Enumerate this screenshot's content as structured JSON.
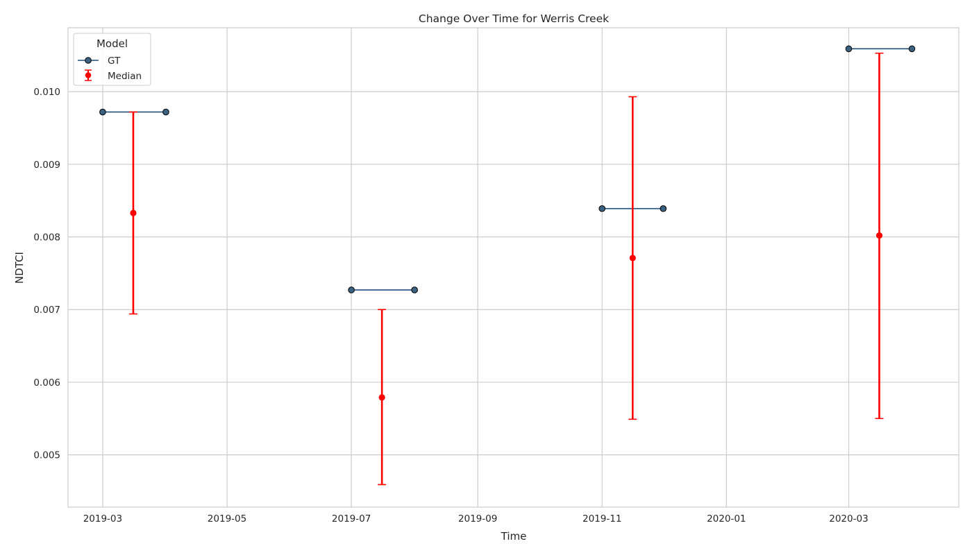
{
  "chart_data": {
    "type": "line",
    "title": "Change Over Time for Werris Creek",
    "xlabel": "Time",
    "ylabel": "NDTCI",
    "x_ticks": [
      "2019-03",
      "2019-05",
      "2019-07",
      "2019-09",
      "2019-11",
      "2020-01",
      "2020-03"
    ],
    "y_ticks": [
      "0.005",
      "0.006",
      "0.007",
      "0.008",
      "0.009",
      "0.010"
    ],
    "xlim": [
      "2019-02-12",
      "2020-04-24"
    ],
    "ylim": [
      0.00428,
      0.01088
    ],
    "grid": true,
    "legend": {
      "title": "Model",
      "placement": "top-left",
      "entries": [
        "GT",
        "Median"
      ]
    },
    "series": [
      {
        "name": "GT",
        "kind": "line-markers",
        "segments": [
          [
            {
              "x": "2019-03-01",
              "y": 0.00972
            },
            {
              "x": "2019-04-01",
              "y": 0.00972
            }
          ],
          [
            {
              "x": "2019-07-01",
              "y": 0.00727
            },
            {
              "x": "2019-08-01",
              "y": 0.00727
            }
          ],
          [
            {
              "x": "2019-11-01",
              "y": 0.00839
            },
            {
              "x": "2019-12-01",
              "y": 0.00839
            }
          ],
          [
            {
              "x": "2020-03-01",
              "y": 0.01059
            },
            {
              "x": "2020-04-01",
              "y": 0.01059
            }
          ]
        ]
      },
      {
        "name": "Median",
        "kind": "errorbar",
        "points": [
          {
            "x": "2019-03-16",
            "y": 0.00833,
            "low": 0.00694,
            "high": 0.00972
          },
          {
            "x": "2019-07-16",
            "y": 0.00579,
            "low": 0.00459,
            "high": 0.007
          },
          {
            "x": "2019-11-16",
            "y": 0.00771,
            "low": 0.00549,
            "high": 0.00993
          },
          {
            "x": "2020-03-16",
            "y": 0.00802,
            "low": 0.0055,
            "high": 0.01053
          }
        ]
      }
    ],
    "colors": {
      "gt_line": "#1f4e79",
      "gt_marker": "#3b6180",
      "median": "#ff0000",
      "grid": "#cccccc"
    }
  }
}
